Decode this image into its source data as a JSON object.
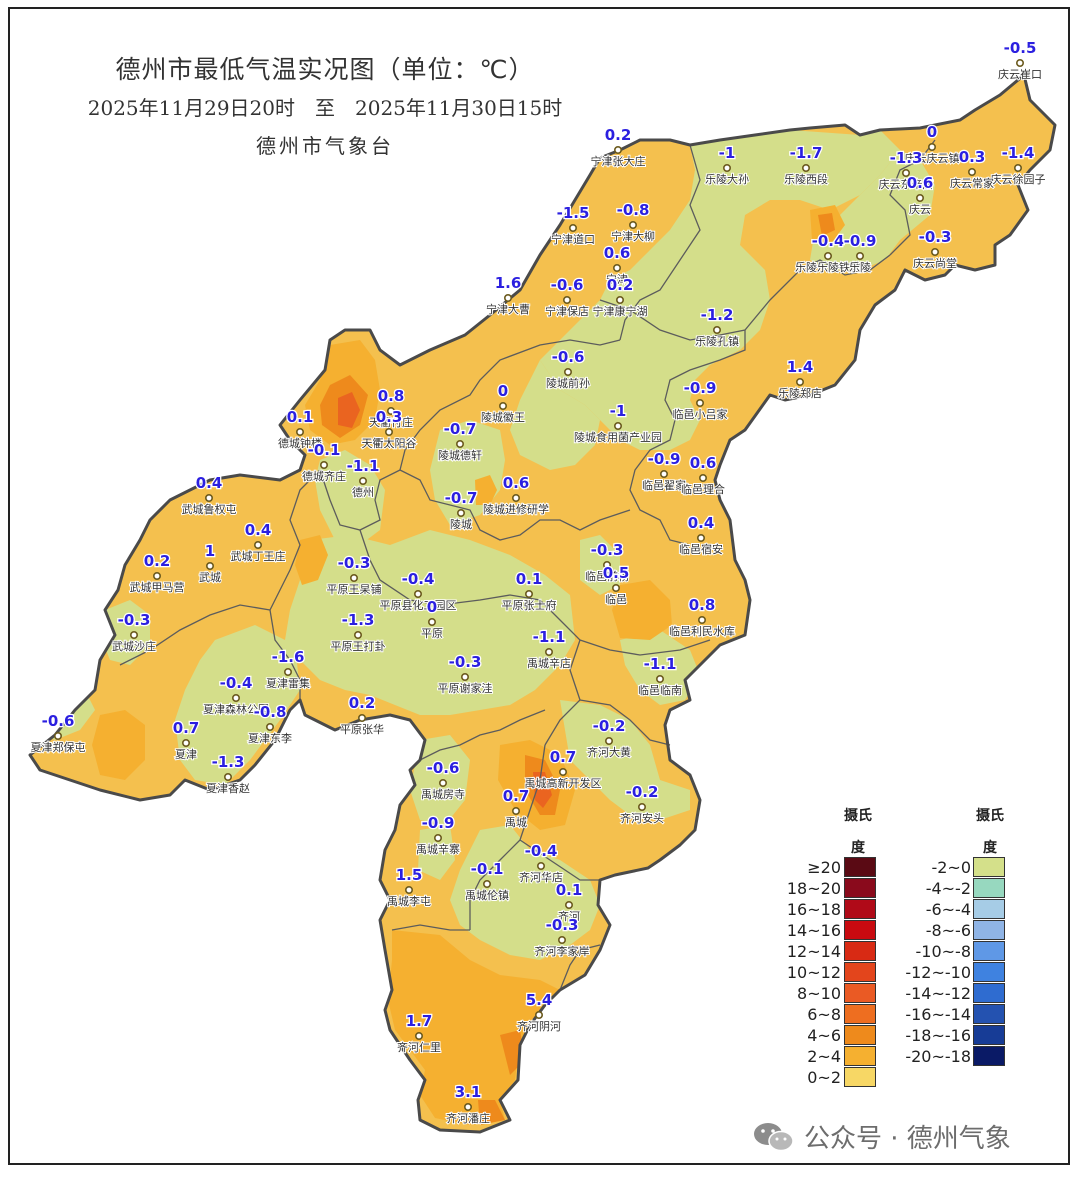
{
  "header": {
    "title": "德州市最低气温实况图（单位：℃）",
    "period": "2025年11月29日20时　至　2025年11月30日15时",
    "agency": "德州市气象台"
  },
  "stations": [
    {
      "name": "庆云崔口",
      "value": "-0.5"
    },
    {
      "name": "庆云庆云镇",
      "value": "0"
    },
    {
      "name": "庆云徐园子",
      "value": "-1.4"
    },
    {
      "name": "庆云常家",
      "value": "0.3"
    },
    {
      "name": "庆云东辛店",
      "value": "-1.3"
    },
    {
      "name": "庆云",
      "value": "0.6"
    },
    {
      "name": "庆云尚堂",
      "value": "-0.3"
    },
    {
      "name": "宁津张大庄",
      "value": "0.2"
    },
    {
      "name": "乐陵大孙",
      "value": "-1"
    },
    {
      "name": "乐陵西段",
      "value": "-1.7"
    },
    {
      "name": "宁津道口",
      "value": "-1.5"
    },
    {
      "name": "宁津大柳",
      "value": "-0.8"
    },
    {
      "name": "宁津",
      "value": "0.6"
    },
    {
      "name": "乐陵乐陵铁营",
      "value": "-0.4"
    },
    {
      "name": "乐陵",
      "value": "-0.9"
    },
    {
      "name": "宁津大曹",
      "value": "1.6"
    },
    {
      "name": "宁津保店",
      "value": "-0.6"
    },
    {
      "name": "宁津康宁湖",
      "value": "0.2"
    },
    {
      "name": "乐陵孔镇",
      "value": "-1.2"
    },
    {
      "name": "陵城前孙",
      "value": "-0.6"
    },
    {
      "name": "乐陵郑店",
      "value": "1.4"
    },
    {
      "name": "天衢付庄",
      "value": "0.8"
    },
    {
      "name": "天衢太阳谷",
      "value": "0.3"
    },
    {
      "name": "德城钟楼",
      "value": "0.1"
    },
    {
      "name": "陵城徽王",
      "value": "0"
    },
    {
      "name": "临邑小吕家",
      "value": "-0.9"
    },
    {
      "name": "陵城食用菌产业园",
      "value": "-1"
    },
    {
      "name": "陵城德轩",
      "value": "-0.7"
    },
    {
      "name": "德城齐庄",
      "value": "-0.1"
    },
    {
      "name": "德州",
      "value": "-1.1"
    },
    {
      "name": "临邑翟家",
      "value": "-0.9"
    },
    {
      "name": "临邑理合",
      "value": "0.6"
    },
    {
      "name": "武城鲁权屯",
      "value": "0.4"
    },
    {
      "name": "陵城进修研学",
      "value": "0.6"
    },
    {
      "name": "陵城",
      "value": "-0.7"
    },
    {
      "name": "临邑宿安",
      "value": "0.4"
    },
    {
      "name": "武城丁王庄",
      "value": "0.4"
    },
    {
      "name": "武城",
      "value": "1"
    },
    {
      "name": "武城甲马营",
      "value": "0.2"
    },
    {
      "name": "平原王杲铺",
      "value": "-0.3"
    },
    {
      "name": "平原县化工园区",
      "value": "-0.4"
    },
    {
      "name": "临邑前杨",
      "value": "-0.3"
    },
    {
      "name": "临邑",
      "value": "0.5"
    },
    {
      "name": "平原张士府",
      "value": "0.1"
    },
    {
      "name": "平原",
      "value": "0"
    },
    {
      "name": "临邑利民水库",
      "value": "0.8"
    },
    {
      "name": "武城沙庄",
      "value": "-0.3"
    },
    {
      "name": "平原王打卦",
      "value": "-1.3"
    },
    {
      "name": "禹城辛店",
      "value": "-1.1"
    },
    {
      "name": "夏津雷集",
      "value": "-1.6"
    },
    {
      "name": "平原谢家洼",
      "value": "-0.3"
    },
    {
      "name": "临邑临南",
      "value": "-1.1"
    },
    {
      "name": "夏津森林公园",
      "value": "-0.4"
    },
    {
      "name": "夏津东李",
      "value": "-0.8"
    },
    {
      "name": "夏津郑保屯",
      "value": "-0.6"
    },
    {
      "name": "平原张华",
      "value": "0.2"
    },
    {
      "name": "夏津",
      "value": "0.7"
    },
    {
      "name": "齐河大黄",
      "value": "-0.2"
    },
    {
      "name": "夏津香赵",
      "value": "-1.3"
    },
    {
      "name": "禹城高新开发区",
      "value": "0.7"
    },
    {
      "name": "禹城房寺",
      "value": "-0.6"
    },
    {
      "name": "禹城",
      "value": "0.7"
    },
    {
      "name": "齐河安头",
      "value": "-0.2"
    },
    {
      "name": "禹城辛寨",
      "value": "-0.9"
    },
    {
      "name": "齐河华店",
      "value": "-0.4"
    },
    {
      "name": "禹城李屯",
      "value": "1.5"
    },
    {
      "name": "禹城伦镇",
      "value": "-0.1"
    },
    {
      "name": "齐河",
      "value": "0.1"
    },
    {
      "name": "齐河李家岸",
      "value": "-0.3"
    },
    {
      "name": "齐河阴河",
      "value": "5.4"
    },
    {
      "name": "齐河仁里",
      "value": "1.7"
    },
    {
      "name": "齐河潘庄",
      "value": "3.1"
    }
  ],
  "legend": {
    "unit_header": "摄氏度",
    "warm": [
      {
        "label": "≥20",
        "color": "#5a0a14"
      },
      {
        "label": "18~20",
        "color": "#8a0a1c"
      },
      {
        "label": "16~18",
        "color": "#b00a18"
      },
      {
        "label": "14~16",
        "color": "#c80a10"
      },
      {
        "label": "12~14",
        "color": "#d82a14"
      },
      {
        "label": "10~12",
        "color": "#e3451c"
      },
      {
        "label": "8~10",
        "color": "#ea5a24"
      },
      {
        "label": "6~8",
        "color": "#ee6e20"
      },
      {
        "label": "4~6",
        "color": "#ee8a1c"
      },
      {
        "label": "2~4",
        "color": "#f5b030"
      },
      {
        "label": "0~2",
        "color": "#f7d765"
      }
    ],
    "cold": [
      {
        "label": "-2~0",
        "color": "#d4e08a"
      },
      {
        "label": "-4~-2",
        "color": "#97d8bf"
      },
      {
        "label": "-6~-4",
        "color": "#a6cce6"
      },
      {
        "label": "-8~-6",
        "color": "#8fb4e6"
      },
      {
        "label": "-10~-8",
        "color": "#5f98e6"
      },
      {
        "label": "-12~-10",
        "color": "#3f82e0"
      },
      {
        "label": "-14~-12",
        "color": "#2f6cd0"
      },
      {
        "label": "-16~-14",
        "color": "#2452b0"
      },
      {
        "label": "-18~-16",
        "color": "#173c96"
      },
      {
        "label": "-20~-18",
        "color": "#0a1a66"
      }
    ]
  },
  "watermark": "公众号 · 德州气象"
}
